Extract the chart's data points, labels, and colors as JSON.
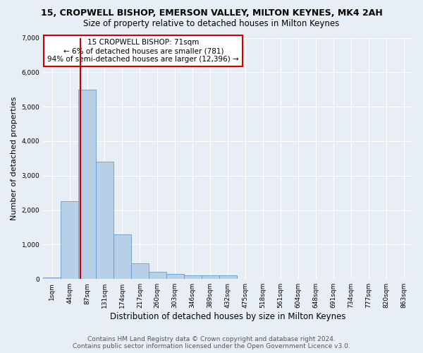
{
  "title_line1": "15, CROPWELL BISHOP, EMERSON VALLEY, MILTON KEYNES, MK4 2AH",
  "title_line2": "Size of property relative to detached houses in Milton Keynes",
  "xlabel": "Distribution of detached houses by size in Milton Keynes",
  "ylabel": "Number of detached properties",
  "footer_line1": "Contains HM Land Registry data © Crown copyright and database right 2024.",
  "footer_line2": "Contains public sector information licensed under the Open Government Licence v3.0.",
  "bin_labels": [
    "1sqm",
    "44sqm",
    "87sqm",
    "131sqm",
    "174sqm",
    "217sqm",
    "260sqm",
    "303sqm",
    "346sqm",
    "389sqm",
    "432sqm",
    "475sqm",
    "518sqm",
    "561sqm",
    "604sqm",
    "648sqm",
    "691sqm",
    "734sqm",
    "777sqm",
    "820sqm",
    "863sqm"
  ],
  "bar_values": [
    50,
    2250,
    5500,
    3400,
    1300,
    450,
    200,
    150,
    100,
    100,
    100,
    0,
    0,
    0,
    0,
    0,
    0,
    0,
    0,
    0,
    0
  ],
  "bar_color": "#b8cfe8",
  "bar_edge_color": "#6699cc",
  "bar_width": 1.0,
  "red_line_x": 1.62,
  "annotation_text": "15 CROPWELL BISHOP: 71sqm\n← 6% of detached houses are smaller (781)\n94% of semi-detached houses are larger (12,396) →",
  "annotation_box_color": "#ffffff",
  "annotation_box_edge": "#cc0000",
  "red_line_color": "#cc0000",
  "ylim": [
    0,
    7000
  ],
  "yticks": [
    0,
    1000,
    2000,
    3000,
    4000,
    5000,
    6000,
    7000
  ],
  "bg_color": "#e8eef5",
  "grid_color": "#ffffff",
  "title1_fontsize": 9,
  "title2_fontsize": 8.5,
  "xlabel_fontsize": 8.5,
  "ylabel_fontsize": 8,
  "tick_fontsize": 6.5,
  "annotation_fontsize": 7.5,
  "footer_fontsize": 6.5
}
